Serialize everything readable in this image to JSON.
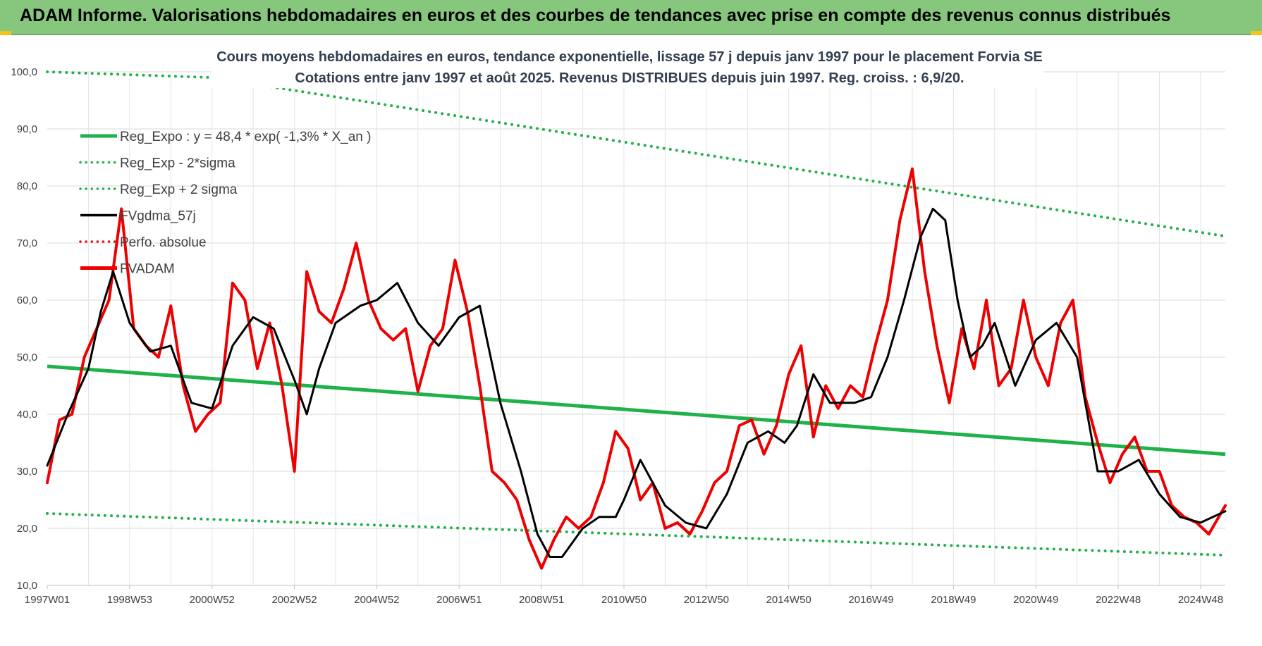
{
  "banner": {
    "title": "ADAM Informe. Valorisations hebdomadaires en euros et des courbes de tendances avec prise en compte des revenus connus distribués"
  },
  "chart_data": {
    "type": "line",
    "title": "Cours moyens hebdomadaires en euros, tendance exponentielle, lissage 57 j depuis janv 1997  pour le placement Forvia SE",
    "subtitle": "Cotations entre janv 1997 et août 2025. Revenus DISTRIBUES depuis juin 1997. Reg. croiss. : 6,9/20.",
    "xlabel": "",
    "ylabel": "",
    "ylim": [
      10,
      100
    ],
    "xlim": [
      1997.0,
      2025.6
    ],
    "yticks": [
      "10,0",
      "20,0",
      "30,0",
      "40,0",
      "50,0",
      "60,0",
      "70,0",
      "80,0",
      "90,0",
      "100,0"
    ],
    "xticks": [
      {
        "x": 1997.0,
        "label": "1997W01"
      },
      {
        "x": 1999.0,
        "label": "1998W53"
      },
      {
        "x": 2001.0,
        "label": "2000W52"
      },
      {
        "x": 2003.0,
        "label": "2002W52"
      },
      {
        "x": 2005.0,
        "label": "2004W52"
      },
      {
        "x": 2007.0,
        "label": "2006W51"
      },
      {
        "x": 2009.0,
        "label": "2008W51"
      },
      {
        "x": 2011.0,
        "label": "2010W50"
      },
      {
        "x": 2013.0,
        "label": "2012W50"
      },
      {
        "x": 2015.0,
        "label": "2014W50"
      },
      {
        "x": 2017.0,
        "label": "2016W49"
      },
      {
        "x": 2019.0,
        "label": "2018W49"
      },
      {
        "x": 2021.0,
        "label": "2020W49"
      },
      {
        "x": 2023.0,
        "label": "2022W48"
      },
      {
        "x": 2025.0,
        "label": "2024W48"
      }
    ],
    "grid": true,
    "legend_position": "top-left",
    "colors": {
      "reg_expo": "#1fb24a",
      "sigma": "#22b04a",
      "gdma": "#000000",
      "perfo": "#e0141e",
      "adam": "#ee0000"
    },
    "legend": [
      {
        "label": "Reg_Expo : y = 48,4 * exp( -1,3% *  X_an )",
        "style": "solid-thick",
        "color": "#1fb24a"
      },
      {
        "label": "Reg_Exp - 2*sigma",
        "style": "dotted",
        "color": "#22b04a"
      },
      {
        "label": "Reg_Exp + 2 sigma",
        "style": "dotted",
        "color": "#22b04a"
      },
      {
        "label": "FVgdma_57j",
        "style": "solid",
        "color": "#000000"
      },
      {
        "label": "Perfo. absolue",
        "style": "dotted",
        "color": "#e0141e"
      },
      {
        "label": "FVADAM",
        "style": "solid-thick",
        "color": "#ee0000"
      }
    ],
    "series": [
      {
        "name": "Reg_Expo : y = 48,4 * exp( -1,3% *  X_an )",
        "x": [
          1997.0,
          2025.6
        ],
        "values": [
          48.4,
          33.0
        ]
      },
      {
        "name": "Reg_Exp - 2*sigma",
        "x": [
          1997.0,
          2025.6
        ],
        "values": [
          22.6,
          15.3
        ]
      },
      {
        "name": "Reg_Exp + 2 sigma",
        "x": [
          1997.0,
          2001.0,
          2025.6
        ],
        "values": [
          100.0,
          99.0,
          71.2
        ]
      },
      {
        "name": "FVgdma_57j",
        "x": [
          1997.0,
          1997.5,
          1998.0,
          1998.3,
          1998.6,
          1999.0,
          1999.5,
          2000.0,
          2000.5,
          2001.0,
          2001.5,
          2002.0,
          2002.5,
          2003.0,
          2003.3,
          2003.6,
          2004.0,
          2004.6,
          2005.0,
          2005.5,
          2006.0,
          2006.5,
          2007.0,
          2007.5,
          2008.0,
          2008.5,
          2008.9,
          2009.2,
          2009.5,
          2010.0,
          2010.4,
          2010.8,
          2011.0,
          2011.4,
          2012.0,
          2012.5,
          2013.0,
          2013.5,
          2014.0,
          2014.5,
          2014.9,
          2015.2,
          2015.6,
          2016.0,
          2016.6,
          2017.0,
          2017.4,
          2017.8,
          2018.2,
          2018.5,
          2018.8,
          2019.1,
          2019.4,
          2019.7,
          2020.0,
          2020.5,
          2021.0,
          2021.5,
          2022.0,
          2022.5,
          2023.0,
          2023.5,
          2024.0,
          2024.5,
          2025.0,
          2025.6
        ],
        "values": [
          31,
          40,
          48,
          58,
          65,
          56,
          51,
          52,
          42,
          41,
          52,
          57,
          55,
          46,
          40,
          48,
          56,
          59,
          60,
          63,
          56,
          52,
          57,
          59,
          42,
          30,
          19,
          15,
          15,
          20,
          22,
          22,
          25,
          32,
          24,
          21,
          20,
          26,
          35,
          37,
          35,
          38,
          47,
          42,
          42,
          43,
          50,
          60,
          71,
          76,
          74,
          60,
          50,
          52,
          56,
          45,
          53,
          56,
          50,
          30,
          30,
          32,
          26,
          22,
          21,
          23
        ]
      },
      {
        "name": "FVADAM",
        "x": [
          1997.0,
          1997.3,
          1997.6,
          1997.9,
          1998.2,
          1998.5,
          1998.8,
          1999.1,
          1999.4,
          1999.7,
          2000.0,
          2000.3,
          2000.6,
          2000.9,
          2001.2,
          2001.5,
          2001.8,
          2002.1,
          2002.4,
          2002.7,
          2003.0,
          2003.3,
          2003.6,
          2003.9,
          2004.2,
          2004.5,
          2004.8,
          2005.1,
          2005.4,
          2005.7,
          2006.0,
          2006.3,
          2006.6,
          2006.9,
          2007.2,
          2007.5,
          2007.8,
          2008.1,
          2008.4,
          2008.7,
          2009.0,
          2009.3,
          2009.6,
          2009.9,
          2010.2,
          2010.5,
          2010.8,
          2011.1,
          2011.4,
          2011.7,
          2012.0,
          2012.3,
          2012.6,
          2012.9,
          2013.2,
          2013.5,
          2013.8,
          2014.1,
          2014.4,
          2014.7,
          2015.0,
          2015.3,
          2015.6,
          2015.9,
          2016.2,
          2016.5,
          2016.8,
          2017.1,
          2017.4,
          2017.7,
          2018.0,
          2018.3,
          2018.6,
          2018.9,
          2019.2,
          2019.5,
          2019.8,
          2020.1,
          2020.4,
          2020.7,
          2021.0,
          2021.3,
          2021.6,
          2021.9,
          2022.2,
          2022.5,
          2022.8,
          2023.1,
          2023.4,
          2023.7,
          2024.0,
          2024.3,
          2024.6,
          2024.9,
          2025.2,
          2025.6
        ],
        "values": [
          28,
          39,
          40,
          50,
          55,
          60,
          76,
          55,
          52,
          50,
          59,
          45,
          37,
          40,
          42,
          63,
          60,
          48,
          56,
          45,
          30,
          65,
          58,
          56,
          62,
          70,
          60,
          55,
          53,
          55,
          44,
          52,
          55,
          67,
          58,
          45,
          30,
          28,
          25,
          18,
          13,
          18,
          22,
          20,
          22,
          28,
          37,
          34,
          25,
          28,
          20,
          21,
          19,
          23,
          28,
          30,
          38,
          39,
          33,
          38,
          47,
          52,
          36,
          45,
          41,
          45,
          43,
          52,
          60,
          74,
          83,
          65,
          52,
          42,
          55,
          48,
          60,
          45,
          48,
          60,
          50,
          45,
          56,
          60,
          43,
          35,
          28,
          33,
          36,
          30,
          30,
          24,
          22,
          21,
          19,
          24
        ]
      }
    ]
  }
}
